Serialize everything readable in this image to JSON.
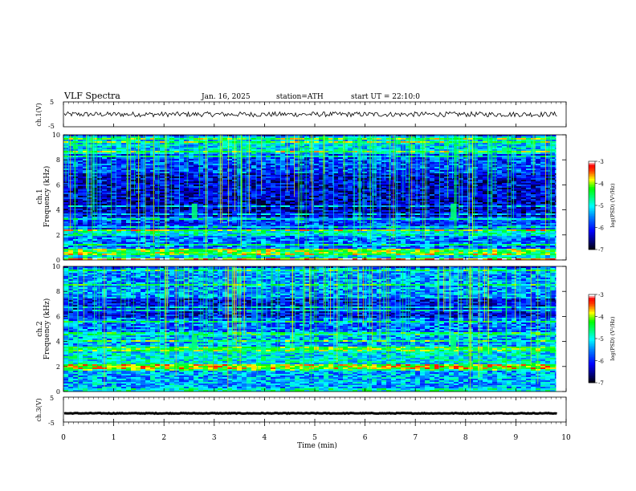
{
  "header": {
    "title": "VLF Spectra",
    "date": "Jan. 16, 2025",
    "station": "station=ATH",
    "start_ut": "start UT = 22:10:0"
  },
  "colors": {
    "colormap": [
      "#000000",
      "#000080",
      "#0000ff",
      "#0080ff",
      "#00ffff",
      "#00ff80",
      "#00ff00",
      "#ffff00",
      "#ff8000",
      "#ff0000",
      "#ffffff"
    ],
    "trace": "#000000"
  },
  "chart_data": [
    {
      "type": "line",
      "name": "ch1-voltage",
      "ylabel": "ch.1(V)",
      "ylim": [
        -5,
        5
      ],
      "yticks": [
        "5",
        "-5"
      ],
      "xlim": [
        0,
        10
      ],
      "trace_mean": 0.0,
      "trace_amplitude": 1.0
    },
    {
      "type": "heatmap",
      "name": "ch1-spectrogram",
      "ylabel": "ch.1\nFrequency (kHz)",
      "ylim": [
        0,
        10
      ],
      "yticks": [
        "0",
        "2",
        "4",
        "6",
        "8",
        "10"
      ],
      "xlim": [
        0,
        9.8
      ],
      "colorbar": {
        "label": "log(PSD) (V²/Hz)",
        "range": [
          -7,
          -3
        ],
        "ticks": [
          "-3",
          "-4",
          "-5",
          "-6",
          "-7"
        ]
      },
      "bands_khz": [
        {
          "f": [
            0.0,
            0.2
          ],
          "v": -3.5
        },
        {
          "f": [
            0.2,
            0.6
          ],
          "v": -5.0
        },
        {
          "f": [
            0.6,
            1.0
          ],
          "v": -4.2
        },
        {
          "f": [
            1.0,
            2.0
          ],
          "v": -5.6
        },
        {
          "f": [
            2.0,
            2.5
          ],
          "v": -4.9
        },
        {
          "f": [
            2.5,
            3.5
          ],
          "v": -5.8
        },
        {
          "f": [
            3.5,
            5.0
          ],
          "v": -6.3
        },
        {
          "f": [
            5.0,
            7.0
          ],
          "v": -6.2
        },
        {
          "f": [
            7.0,
            8.5
          ],
          "v": -5.8
        },
        {
          "f": [
            8.5,
            10.0
          ],
          "v": -5.1
        }
      ],
      "sferic_bursts_min": [
        2.6,
        7.75
      ]
    },
    {
      "type": "heatmap",
      "name": "ch2-spectrogram",
      "ylabel": "ch.2\nFrequency (kHz)",
      "ylim": [
        0,
        10
      ],
      "yticks": [
        "0",
        "2",
        "4",
        "6",
        "8",
        "10"
      ],
      "xlim": [
        0,
        9.8
      ],
      "colorbar": {
        "label": "log(PSD) (V²/Hz)",
        "range": [
          -7,
          -3
        ],
        "ticks": [
          "-3",
          "-4",
          "-5",
          "-6",
          "-7"
        ]
      },
      "bands_khz": [
        {
          "f": [
            0.0,
            0.3
          ],
          "v": -4.8
        },
        {
          "f": [
            0.3,
            1.8
          ],
          "v": -5.3
        },
        {
          "f": [
            1.8,
            2.3
          ],
          "v": -3.9
        },
        {
          "f": [
            2.3,
            3.3
          ],
          "v": -5.0
        },
        {
          "f": [
            3.3,
            3.7
          ],
          "v": -4.3
        },
        {
          "f": [
            3.7,
            4.5
          ],
          "v": -5.3
        },
        {
          "f": [
            4.5,
            4.8
          ],
          "v": -4.6
        },
        {
          "f": [
            4.8,
            6.0
          ],
          "v": -5.6
        },
        {
          "f": [
            6.0,
            7.5
          ],
          "v": -6.1
        },
        {
          "f": [
            7.5,
            10.0
          ],
          "v": -5.4
        }
      ],
      "sferic_bursts_min": [
        2.6,
        7.75
      ]
    },
    {
      "type": "line",
      "name": "ch3-voltage",
      "ylabel": "ch.3(V)",
      "ylim": [
        -5,
        5
      ],
      "yticks": [
        "5",
        "-5"
      ],
      "xlim": [
        0,
        10
      ],
      "trace_mean": -1.5,
      "trace_amplitude": 0.15
    }
  ],
  "x_axis": {
    "label": "Time (min)",
    "ticks": [
      "0",
      "1",
      "2",
      "3",
      "4",
      "5",
      "6",
      "7",
      "8",
      "9",
      "10"
    ]
  }
}
